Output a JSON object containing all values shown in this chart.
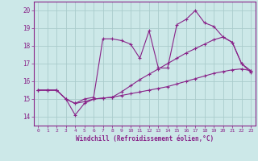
{
  "xlabel": "Windchill (Refroidissement éolien,°C)",
  "bg_color": "#cce8e8",
  "grid_color": "#aacccc",
  "line_color": "#882288",
  "xlim": [
    -0.5,
    23.5
  ],
  "ylim": [
    13.5,
    20.5
  ],
  "yticks": [
    14,
    15,
    16,
    17,
    18,
    19,
    20
  ],
  "xticks": [
    0,
    1,
    2,
    3,
    4,
    5,
    6,
    7,
    8,
    9,
    10,
    11,
    12,
    13,
    14,
    15,
    16,
    17,
    18,
    19,
    20,
    21,
    22,
    23
  ],
  "line1_x": [
    0,
    1,
    2,
    3,
    4,
    5,
    6,
    7,
    8,
    9,
    10,
    11,
    12,
    13,
    14,
    15,
    16,
    17,
    18,
    19,
    20,
    21,
    22,
    23
  ],
  "line1_y": [
    15.5,
    15.5,
    15.5,
    15.0,
    14.75,
    14.85,
    15.0,
    15.05,
    15.1,
    15.2,
    15.3,
    15.4,
    15.5,
    15.6,
    15.7,
    15.85,
    16.0,
    16.15,
    16.3,
    16.45,
    16.55,
    16.65,
    16.7,
    16.6
  ],
  "line2_x": [
    0,
    1,
    2,
    3,
    4,
    5,
    6,
    7,
    8,
    9,
    10,
    11,
    12,
    13,
    14,
    15,
    16,
    17,
    18,
    19,
    20,
    21,
    22,
    23
  ],
  "line2_y": [
    15.5,
    15.5,
    15.5,
    15.0,
    14.75,
    15.0,
    15.1,
    18.4,
    18.4,
    18.3,
    18.1,
    17.3,
    18.85,
    16.75,
    16.75,
    19.2,
    19.5,
    20.0,
    19.3,
    19.1,
    18.5,
    18.2,
    17.0,
    16.6
  ],
  "line3_x": [
    0,
    1,
    2,
    3,
    4,
    5,
    6,
    7,
    8,
    9,
    10,
    11,
    12,
    13,
    14,
    15,
    16,
    17,
    18,
    19,
    20,
    21,
    22,
    23
  ],
  "line3_y": [
    15.5,
    15.5,
    15.5,
    15.0,
    14.1,
    14.75,
    15.0,
    15.05,
    15.1,
    15.4,
    15.75,
    16.1,
    16.4,
    16.7,
    17.0,
    17.3,
    17.6,
    17.85,
    18.1,
    18.35,
    18.5,
    18.2,
    17.0,
    16.5
  ]
}
